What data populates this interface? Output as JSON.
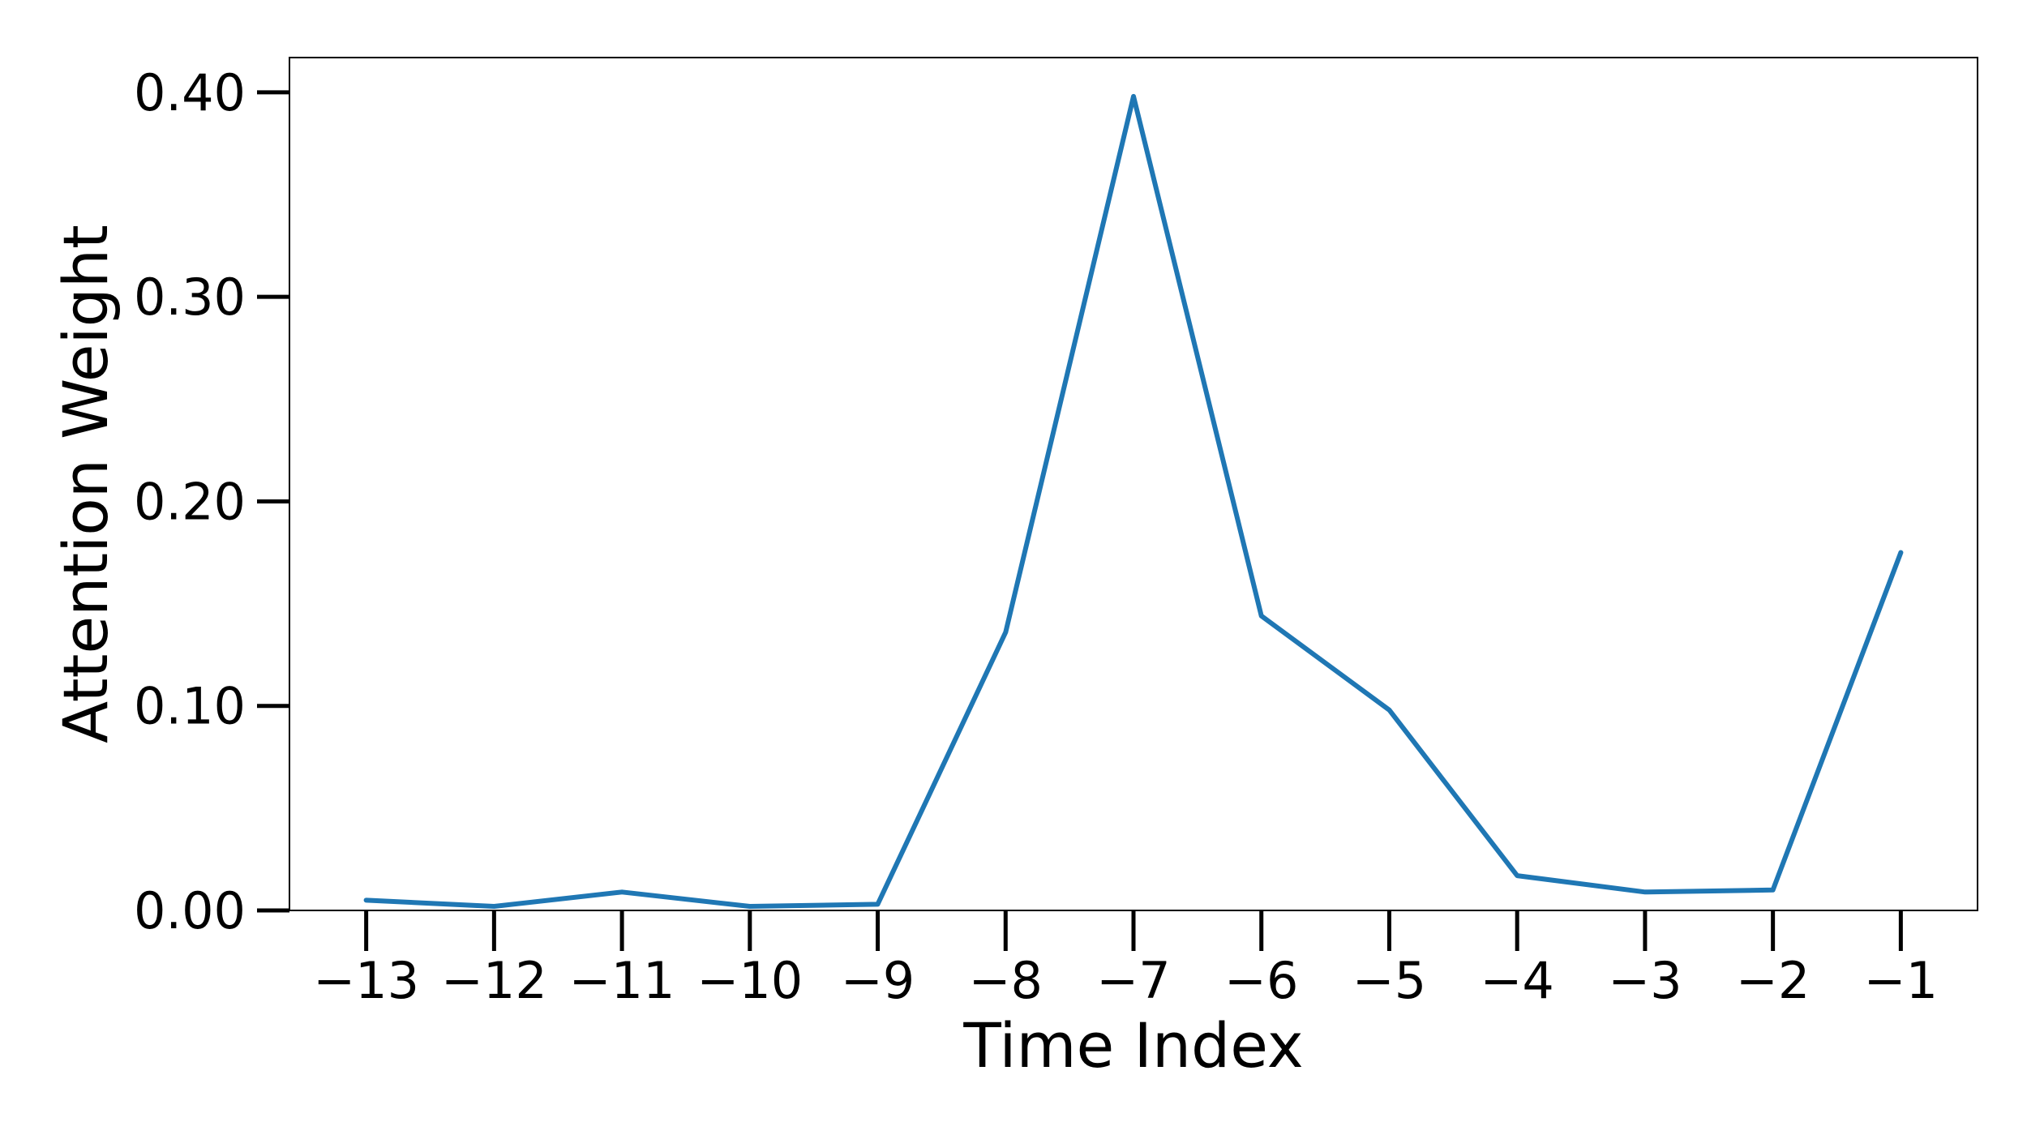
{
  "chart_data": {
    "type": "line",
    "title": "",
    "xlabel": "Time Index",
    "ylabel": "Attention Weight",
    "x": [
      -13,
      -12,
      -11,
      -10,
      -9,
      -8,
      -7,
      -6,
      -5,
      -4,
      -3,
      -2,
      -1
    ],
    "x_tick_labels": [
      "−13",
      "−12",
      "−11",
      "−10",
      "−9",
      "−8",
      "−7",
      "−6",
      "−5",
      "−4",
      "−3",
      "−2",
      "−1"
    ],
    "y_ticks": [
      0.0,
      0.1,
      0.2,
      0.3,
      0.4
    ],
    "y_tick_labels": [
      "0.00",
      "0.10",
      "0.20",
      "0.30",
      "0.40"
    ],
    "xlim": [
      -13.6,
      -0.4
    ],
    "ylim": [
      0.0,
      0.417
    ],
    "grid": false,
    "series": [
      {
        "color": "#1f77b4",
        "values": [
          0.005,
          0.002,
          0.009,
          0.002,
          0.003,
          0.136,
          0.398,
          0.144,
          0.098,
          0.017,
          0.009,
          0.01,
          0.175
        ]
      }
    ]
  }
}
